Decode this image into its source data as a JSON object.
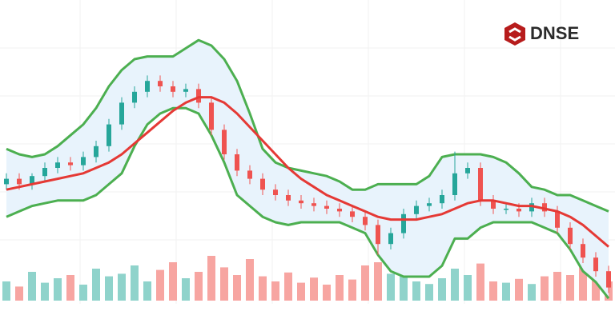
{
  "logo": {
    "text": "DNSE"
  },
  "chart_data": {
    "type": "candlestick",
    "ylim": [
      0,
      100
    ],
    "volume_ylim": [
      0,
      100
    ],
    "up_color": "#26a69a",
    "down_color": "#ef5350",
    "volume_up_color": "#8fd3cb",
    "volume_down_color": "#f7a5a1",
    "band_color": "#4caf50",
    "band_fill": "#e8f3fc",
    "middle_color": "#e53935",
    "candles": {
      "open": [
        44,
        46,
        44,
        47,
        50,
        52,
        51,
        54,
        58,
        66,
        74,
        78,
        82,
        80,
        78,
        79,
        74,
        64,
        55,
        49,
        46,
        42,
        40,
        38,
        37,
        36,
        35,
        34,
        32,
        29,
        22,
        26,
        33,
        36,
        37,
        40,
        48,
        50,
        38,
        35,
        35,
        34,
        37,
        34,
        28,
        22,
        17,
        12
      ],
      "high": [
        48,
        48,
        48,
        52,
        54,
        54,
        56,
        60,
        68,
        76,
        80,
        84,
        84,
        82,
        81,
        81,
        76,
        66,
        57,
        51,
        48,
        44,
        42,
        40,
        39,
        38,
        37,
        36,
        34,
        31,
        28,
        35,
        38,
        39,
        42,
        56,
        52,
        52,
        40,
        37,
        37,
        39,
        39,
        36,
        30,
        24,
        19,
        14
      ],
      "low": [
        42,
        42,
        42,
        45,
        48,
        49,
        49,
        52,
        56,
        64,
        72,
        76,
        78,
        76,
        76,
        72,
        62,
        53,
        47,
        44,
        40,
        38,
        36,
        35,
        34,
        33,
        32,
        30,
        27,
        18,
        20,
        24,
        31,
        34,
        35,
        38,
        46,
        36,
        33,
        33,
        32,
        32,
        32,
        26,
        20,
        15,
        10,
        4
      ],
      "close": [
        46,
        44,
        47,
        50,
        52,
        51,
        54,
        58,
        66,
        74,
        78,
        82,
        80,
        78,
        79,
        74,
        64,
        55,
        49,
        46,
        42,
        40,
        38,
        37,
        36,
        35,
        34,
        32,
        29,
        22,
        26,
        33,
        36,
        37,
        40,
        48,
        50,
        38,
        35,
        35,
        34,
        37,
        34,
        28,
        22,
        17,
        12,
        6
      ]
    },
    "volume": [
      30,
      22,
      45,
      28,
      35,
      40,
      25,
      50,
      38,
      42,
      55,
      30,
      48,
      60,
      35,
      45,
      70,
      52,
      40,
      65,
      38,
      30,
      44,
      28,
      36,
      25,
      40,
      33,
      55,
      60,
      42,
      38,
      30,
      26,
      35,
      50,
      40,
      58,
      30,
      28,
      34,
      26,
      38,
      45,
      40,
      52,
      36,
      30
    ],
    "bands": {
      "upper": [
        57,
        55,
        54,
        55,
        58,
        62,
        66,
        72,
        80,
        86,
        90,
        91,
        91,
        91,
        94,
        97,
        95,
        90,
        82,
        70,
        57,
        52,
        50,
        49,
        48,
        47,
        45,
        42,
        42,
        44,
        44,
        44,
        44,
        47,
        54,
        55,
        55,
        55,
        54,
        52,
        48,
        43,
        42,
        40,
        40,
        38,
        36,
        34
      ],
      "middle": [
        42,
        43,
        44,
        45,
        46,
        47,
        48,
        50,
        52,
        55,
        59,
        63,
        67,
        71,
        74,
        76,
        76,
        74,
        70,
        65,
        60,
        55,
        50,
        46,
        43,
        40,
        38,
        36,
        34,
        32,
        31,
        31,
        31,
        32,
        33,
        35,
        37,
        38,
        38,
        37,
        36,
        36,
        35,
        34,
        32,
        29,
        25,
        21
      ],
      "lower": [
        32,
        34,
        36,
        37,
        38,
        38,
        38,
        40,
        44,
        48,
        58,
        66,
        70,
        72,
        72,
        70,
        62,
        52,
        40,
        36,
        32,
        30,
        29,
        30,
        30,
        30,
        30,
        28,
        26,
        18,
        12,
        10,
        10,
        10,
        14,
        24,
        24,
        28,
        30,
        30,
        30,
        30,
        28,
        26,
        20,
        12,
        8,
        2
      ]
    }
  }
}
